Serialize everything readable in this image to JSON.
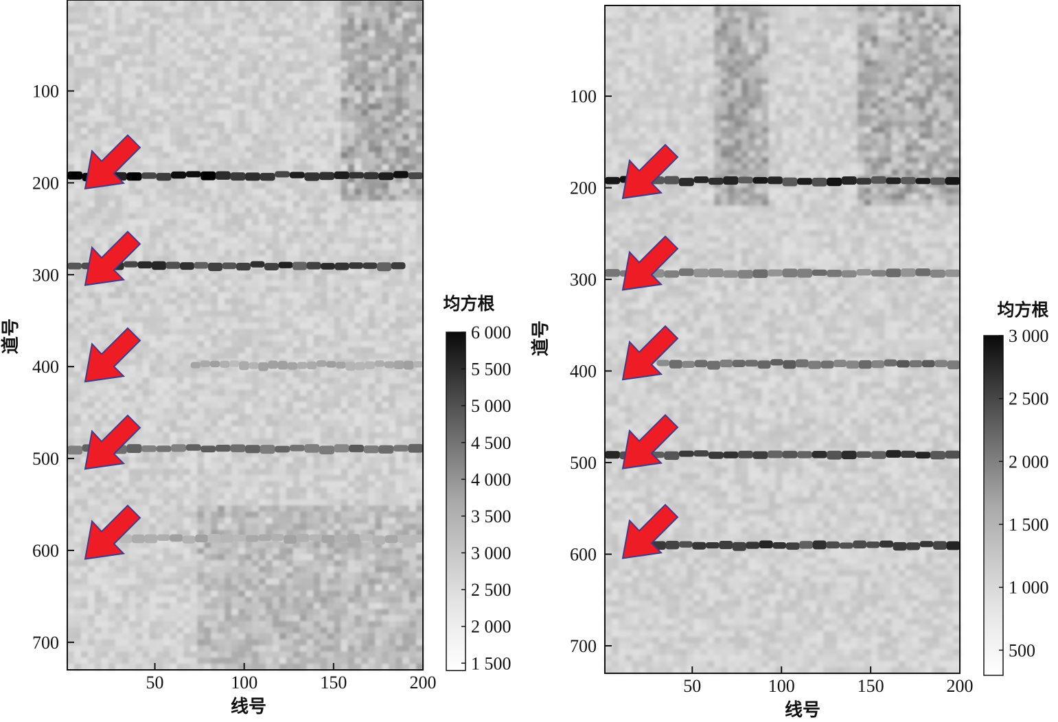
{
  "chart_data": [
    {
      "type": "heatmap",
      "xlabel": "线号",
      "ylabel": "道号",
      "xlim": [
        1,
        200
      ],
      "ylim": [
        1,
        730
      ],
      "y_inverted": true,
      "xticks": [
        50,
        100,
        150,
        200
      ],
      "xtick_labels": [
        "50",
        "100",
        "150",
        "200"
      ],
      "yticks": [
        100,
        200,
        300,
        400,
        500,
        600,
        700
      ],
      "ytick_labels": [
        "100",
        "200",
        "300",
        "400",
        "500",
        "600",
        "700"
      ],
      "colormap": "gray_r",
      "colorbar": {
        "title": "均方根",
        "min": 1400,
        "max": 6000,
        "ticks": [
          1500,
          2000,
          2500,
          3000,
          3500,
          4000,
          4500,
          5000,
          5500,
          6000
        ],
        "tick_labels": [
          "1 500",
          "2 000",
          "2 500",
          "3 000",
          "3 500",
          "4 000",
          "4 500",
          "5 000",
          "5 500",
          "6 000"
        ]
      },
      "bright_lines": [
        {
          "trace": 193,
          "x_range": [
            1,
            200
          ],
          "strength": 0.95
        },
        {
          "trace": 291,
          "x_range": [
            1,
            190
          ],
          "strength": 0.8
        },
        {
          "trace": 399,
          "x_range": [
            70,
            200
          ],
          "strength": 0.35
        },
        {
          "trace": 490,
          "x_range": [
            1,
            200
          ],
          "strength": 0.6
        },
        {
          "trace": 588,
          "x_range": [
            30,
            200
          ],
          "strength": 0.35
        }
      ],
      "arrows_at_traces": [
        175,
        280,
        385,
        480,
        578
      ]
    },
    {
      "type": "heatmap",
      "xlabel": "线号",
      "ylabel": "道号",
      "xlim": [
        1,
        200
      ],
      "ylim": [
        1,
        730
      ],
      "y_inverted": true,
      "xticks": [
        50,
        100,
        150,
        200
      ],
      "xtick_labels": [
        "50",
        "100",
        "150",
        "200"
      ],
      "yticks": [
        100,
        200,
        300,
        400,
        500,
        600,
        700
      ],
      "ytick_labels": [
        "100",
        "200",
        "300",
        "400",
        "500",
        "600",
        "700"
      ],
      "colormap": "gray_r",
      "colorbar": {
        "title": "均方根",
        "min": 300,
        "max": 3000,
        "ticks": [
          500,
          1000,
          1500,
          2000,
          2500,
          3000
        ],
        "tick_labels": [
          "500",
          "1 000",
          "1 500",
          "2 000",
          "2 500",
          "3 000"
        ]
      },
      "bright_lines": [
        {
          "trace": 193,
          "x_range": [
            1,
            200
          ],
          "strength": 0.85
        },
        {
          "trace": 294,
          "x_range": [
            1,
            200
          ],
          "strength": 0.55
        },
        {
          "trace": 393,
          "x_range": [
            30,
            200
          ],
          "strength": 0.6
        },
        {
          "trace": 492,
          "x_range": [
            1,
            200
          ],
          "strength": 0.8
        },
        {
          "trace": 591,
          "x_range": [
            20,
            200
          ],
          "strength": 0.8
        }
      ],
      "arrows_at_traces": [
        180,
        280,
        378,
        475,
        573
      ]
    }
  ]
}
